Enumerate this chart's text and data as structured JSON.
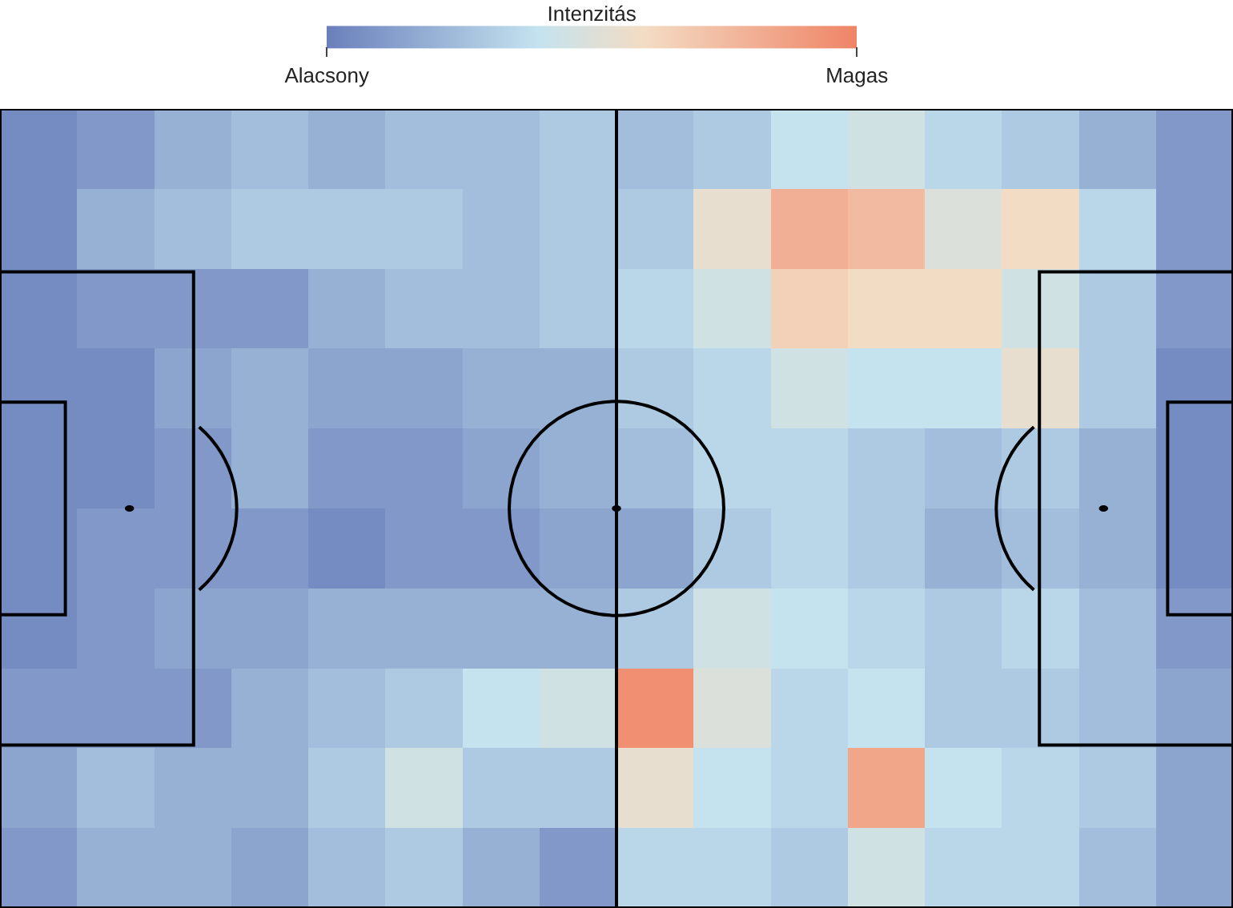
{
  "chart_data": {
    "type": "heatmap",
    "clabel": "Intenzitás",
    "categories": [
      null,
      null,
      null,
      null,
      null,
      null,
      null,
      null,
      null,
      null,
      null,
      null,
      null,
      null,
      null,
      null
    ],
    "y_categories": [
      null,
      null,
      null,
      null,
      null,
      null,
      null,
      null,
      null,
      null
    ],
    "cells": [
      [
        0.05,
        0.1,
        0.2,
        0.25,
        0.2,
        0.25,
        0.25,
        0.3,
        0.25,
        0.3,
        0.4,
        0.45,
        0.35,
        0.3,
        0.2,
        0.1
      ],
      [
        0.05,
        0.2,
        0.25,
        0.3,
        0.3,
        0.3,
        0.25,
        0.3,
        0.3,
        0.55,
        0.8,
        0.75,
        0.5,
        0.6,
        0.35,
        0.1
      ],
      [
        0.05,
        0.1,
        0.1,
        0.1,
        0.2,
        0.25,
        0.25,
        0.3,
        0.35,
        0.45,
        0.65,
        0.6,
        0.6,
        0.45,
        0.3,
        0.1
      ],
      [
        0.05,
        0.05,
        0.15,
        0.2,
        0.15,
        0.15,
        0.2,
        0.2,
        0.3,
        0.35,
        0.45,
        0.4,
        0.4,
        0.55,
        0.3,
        0.05
      ],
      [
        0.05,
        0.05,
        0.1,
        0.2,
        0.1,
        0.1,
        0.15,
        0.2,
        0.25,
        0.35,
        0.35,
        0.3,
        0.25,
        0.3,
        0.2,
        0.05
      ],
      [
        0.05,
        0.1,
        0.1,
        0.1,
        0.05,
        0.1,
        0.1,
        0.15,
        0.15,
        0.3,
        0.35,
        0.3,
        0.2,
        0.25,
        0.2,
        0.05
      ],
      [
        0.05,
        0.1,
        0.15,
        0.15,
        0.2,
        0.2,
        0.2,
        0.2,
        0.3,
        0.45,
        0.4,
        0.35,
        0.3,
        0.35,
        0.25,
        0.1
      ],
      [
        0.1,
        0.1,
        0.1,
        0.2,
        0.25,
        0.3,
        0.4,
        0.45,
        0.95,
        0.5,
        0.35,
        0.4,
        0.3,
        0.3,
        0.25,
        0.15
      ],
      [
        0.15,
        0.25,
        0.2,
        0.2,
        0.3,
        0.45,
        0.3,
        0.3,
        0.55,
        0.4,
        0.35,
        0.85,
        0.4,
        0.35,
        0.3,
        0.15
      ],
      [
        0.1,
        0.2,
        0.2,
        0.15,
        0.25,
        0.3,
        0.2,
        0.1,
        0.35,
        0.35,
        0.3,
        0.45,
        0.35,
        0.35,
        0.25,
        0.15
      ]
    ],
    "clim": [
      0,
      1
    ],
    "cticks": [
      {
        "value": 0,
        "label": "Alacsony"
      },
      {
        "value": 1,
        "label": "Magas"
      }
    ]
  }
}
